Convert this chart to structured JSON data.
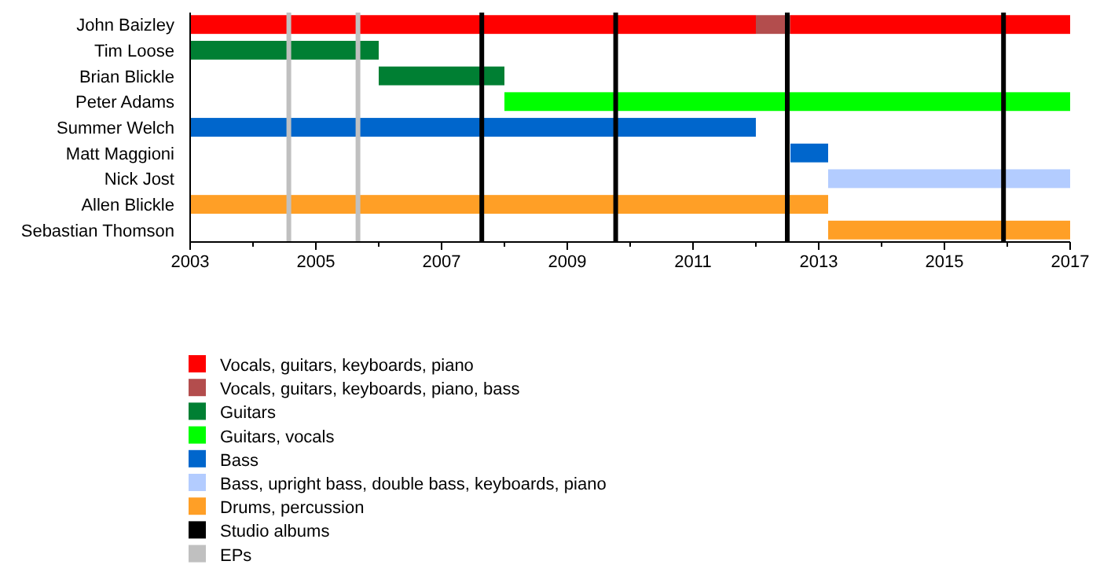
{
  "chart_data": {
    "type": "bar",
    "orientation": "horizontal",
    "legend": "bottom",
    "categories": [
      "John Baizley",
      "Tim Loose",
      "Brian Blickle",
      "Peter Adams",
      "Summer Welch",
      "Matt Maggioni",
      "Nick Jost",
      "Allen Blickle",
      "Sebastian Thomson"
    ],
    "xlim": [
      2003,
      2017
    ],
    "xticks": [
      2003,
      {
        "value": 2004,
        "label": null
      },
      2005,
      {
        "value": 2006,
        "label": null
      },
      2007,
      {
        "value": 2008,
        "label": null
      },
      2009,
      {
        "value": 2010,
        "label": null
      },
      2011,
      {
        "value": 2012,
        "label": null
      },
      2013,
      {
        "value": 2014,
        "label": null
      },
      2015,
      {
        "value": 2016,
        "label": null
      },
      2017
    ],
    "series": [
      {
        "name": "Vocals, guitars, keyboards, piano",
        "color": "#ff0000",
        "base": [
          2003,
          null,
          null,
          null,
          null,
          null,
          null,
          null,
          null
        ],
        "values": [
          9.0,
          null,
          null,
          null,
          null,
          null,
          null,
          null,
          null
        ]
      },
      {
        "color": "#ff0000",
        "base": [
          2012.55,
          null,
          null,
          null,
          null,
          null,
          null,
          null,
          null
        ],
        "values": [
          4.45,
          null,
          null,
          null,
          null,
          null,
          null,
          null,
          null
        ]
      },
      {
        "name": "Vocals, guitars, keyboards, piano, bass",
        "color": "#b34d4d",
        "base": [
          2012.0,
          null,
          null,
          null,
          null,
          null,
          null,
          null,
          null
        ],
        "values": [
          0.55,
          null,
          null,
          null,
          null,
          null,
          null,
          null,
          null
        ]
      },
      {
        "name": "Guitars",
        "color": "#007f33",
        "base": [
          null,
          2003,
          2006.0,
          null,
          null,
          null,
          null,
          null,
          null
        ],
        "values": [
          null,
          3.0,
          2.0,
          null,
          null,
          null,
          null,
          null,
          null
        ]
      },
      {
        "name": "Guitars, vocals",
        "color": "#00ff00",
        "base": [
          null,
          null,
          null,
          2008.0,
          null,
          null,
          null,
          null,
          null
        ],
        "values": [
          null,
          null,
          null,
          9.0,
          null,
          null,
          null,
          null,
          null
        ]
      },
      {
        "name": "Bass",
        "color": "#0066cc",
        "base": [
          null,
          null,
          null,
          null,
          2003,
          2012.55,
          null,
          null,
          null
        ],
        "values": [
          null,
          null,
          null,
          null,
          9.0,
          0.6,
          null,
          null,
          null
        ]
      },
      {
        "name": "Bass, upright bass, double bass, keyboards, piano",
        "color": "#b3ccff",
        "base": [
          null,
          null,
          null,
          null,
          null,
          null,
          2013.15,
          null,
          null
        ],
        "values": [
          null,
          null,
          null,
          null,
          null,
          null,
          3.85,
          null,
          null
        ]
      },
      {
        "name": "Drums, percussion",
        "color": "#ff9f26",
        "base": [
          null,
          null,
          null,
          null,
          null,
          null,
          null,
          2003,
          2013.15
        ],
        "values": [
          null,
          null,
          null,
          null,
          null,
          null,
          null,
          10.15,
          3.85
        ]
      }
    ],
    "ref_lines": [
      {
        "axis": "x",
        "value": 2007.64,
        "label": "Studio albums",
        "color": "#000000"
      },
      {
        "axis": "x",
        "value": 2009.77,
        "label": null,
        "color": "#000000"
      },
      {
        "axis": "x",
        "value": 2012.5,
        "label": null,
        "color": "#000000"
      },
      {
        "axis": "x",
        "value": 2015.94,
        "label": null,
        "color": "#000000"
      },
      {
        "axis": "x",
        "value": 2004.57,
        "label": "EPs",
        "color": "#c0c0c0"
      },
      {
        "axis": "x",
        "value": 2005.67,
        "label": null,
        "color": "#c0c0c0"
      }
    ]
  }
}
